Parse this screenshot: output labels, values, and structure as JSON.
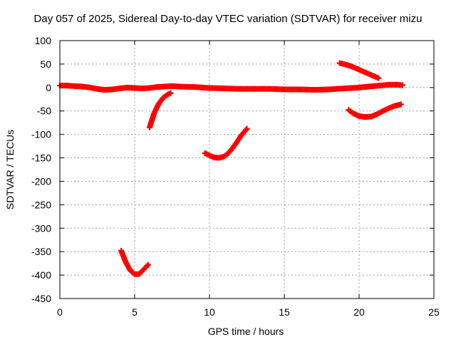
{
  "chart_data": {
    "type": "scatter",
    "title": "Day 057 of 2025, Sidereal Day-to-day VTEC variation (SDTVAR) for receiver mizu",
    "xlabel": "GPS time / hours",
    "ylabel": "SDTVAR / TECUs",
    "xlim": [
      0,
      25
    ],
    "ylim": [
      -450,
      100
    ],
    "xticks": [
      0,
      5,
      10,
      15,
      20,
      25
    ],
    "yticks": [
      100,
      50,
      0,
      -50,
      -100,
      -150,
      -200,
      -250,
      -300,
      -350,
      -400,
      -450
    ],
    "grid": true,
    "marker": "plus",
    "color": "#ff0000",
    "series": [
      {
        "x": [
          0,
          0.5,
          1,
          1.5,
          2,
          2.5,
          3,
          3.5,
          4,
          4.5,
          5,
          5.5,
          6,
          6.5,
          7,
          7.5,
          8,
          9,
          10,
          11,
          12,
          13,
          14,
          15,
          16,
          17,
          18,
          19,
          20,
          21,
          22,
          22.5,
          22.9
        ],
        "y": [
          4,
          4,
          3,
          2,
          0,
          -3,
          -5,
          -4,
          -2,
          0,
          -1,
          -2,
          -1,
          1,
          2,
          3,
          2,
          1,
          -1,
          -2,
          -3,
          -3,
          -3,
          -4,
          -4,
          -5,
          -4,
          -2,
          0,
          3,
          6,
          6,
          5
        ]
      },
      {
        "x": [
          6.0,
          6.3,
          6.6,
          6.9,
          7.2,
          7.4
        ],
        "y": [
          -85,
          -55,
          -35,
          -22,
          -15,
          -12
        ]
      },
      {
        "x": [
          4.1,
          4.4,
          4.7,
          5.0,
          5.3,
          5.6,
          5.9
        ],
        "y": [
          -348,
          -372,
          -390,
          -398,
          -398,
          -388,
          -378
        ]
      },
      {
        "x": [
          9.7,
          10.0,
          10.3,
          10.6,
          10.9,
          11.2,
          11.5,
          11.8,
          12.1,
          12.5
        ],
        "y": [
          -140,
          -145,
          -149,
          -150,
          -148,
          -142,
          -131,
          -118,
          -103,
          -88
        ]
      },
      {
        "x": [
          18.7,
          19.0,
          19.5,
          20.0,
          20.5,
          21.0,
          21.3
        ],
        "y": [
          52,
          50,
          45,
          38,
          31,
          24,
          20
        ]
      },
      {
        "x": [
          19.3,
          19.6,
          20.0,
          20.4,
          20.8,
          21.2,
          21.6,
          22.0,
          22.4,
          22.8
        ],
        "y": [
          -48,
          -55,
          -61,
          -63,
          -62,
          -57,
          -50,
          -44,
          -39,
          -36
        ]
      }
    ]
  }
}
